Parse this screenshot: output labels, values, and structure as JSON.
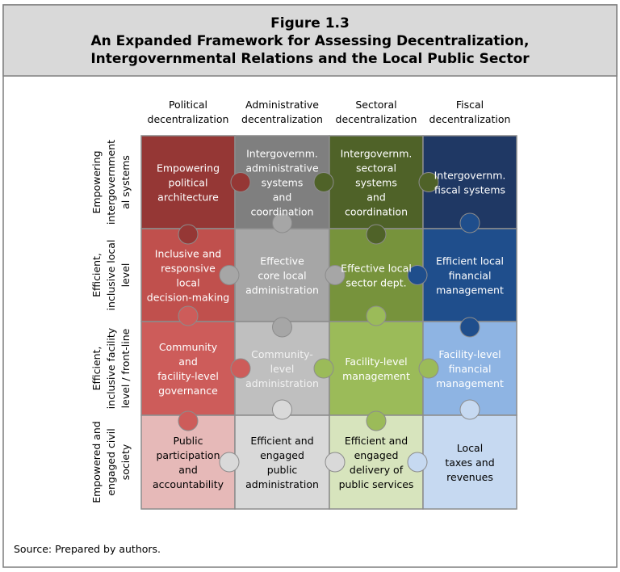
{
  "header": {
    "figure": "Figure 1.3",
    "title_lines": [
      "An Expanded Framework for Assessing Decentralization,",
      "Intergovernmental Relations and the Local Public Sector"
    ]
  },
  "columns": [
    [
      "Political",
      "decentralization"
    ],
    [
      "Administrative",
      "decentralization"
    ],
    [
      "Sectoral",
      "decentralization"
    ],
    [
      "Fiscal",
      "decentralization"
    ]
  ],
  "rows": [
    [
      "Empowering",
      "intergovernment",
      "al systems"
    ],
    [
      "Efficient,",
      "inclusive local",
      "level"
    ],
    [
      "Efficient,",
      "inclusive facility",
      "level / front-line"
    ],
    [
      "Empowered and",
      "engaged civil",
      "society"
    ]
  ],
  "cells": [
    [
      [
        "Empowering",
        "political",
        "architecture"
      ],
      [
        "Intergovernm.",
        "administrative",
        "systems",
        "and",
        "coordination"
      ],
      [
        "Intergovernm.",
        "sectoral",
        "systems",
        "and",
        "coordination"
      ],
      [
        "Intergovernm.",
        "fiscal systems"
      ]
    ],
    [
      [
        "Inclusive and",
        "responsive",
        "local",
        "decision-making"
      ],
      [
        "Effective",
        "core local",
        "administration"
      ],
      [
        "Effective local",
        "sector dept."
      ],
      [
        "Efficient local",
        "financial",
        "management"
      ]
    ],
    [
      [
        "Community",
        "and",
        "facility-level",
        "governance"
      ],
      [
        "Community-",
        "level",
        "administration"
      ],
      [
        "Facility-level",
        "management"
      ],
      [
        "Facility-level",
        "financial",
        "management"
      ]
    ],
    [
      [
        "Public",
        "participation",
        "and",
        "accountability"
      ],
      [
        "Efficient and",
        "engaged",
        "public",
        "administration"
      ],
      [
        "Efficient and",
        "engaged",
        "delivery of",
        "public services"
      ],
      [
        "Local",
        "taxes and",
        "revenues"
      ]
    ]
  ],
  "source": "Source: Prepared by authors."
}
